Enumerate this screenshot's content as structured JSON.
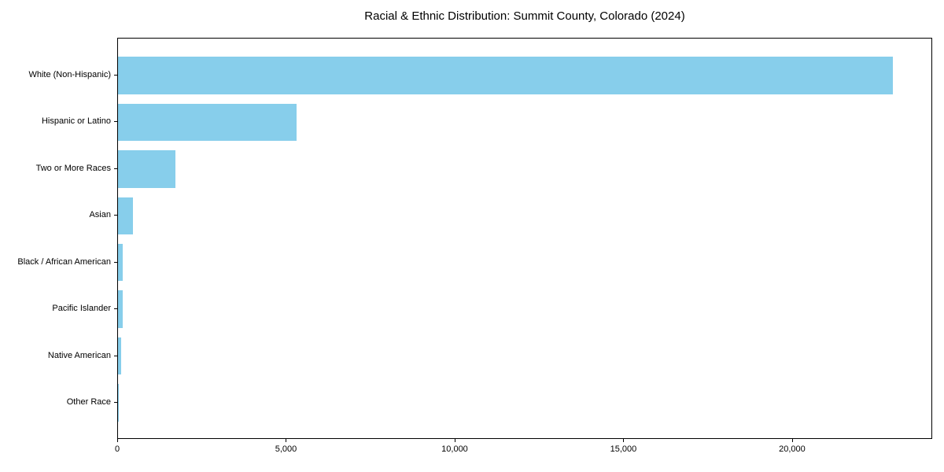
{
  "figure": {
    "background_color": "#ffffff",
    "frame_color": "#000000",
    "text_color": "#000000"
  },
  "chart_data": {
    "type": "bar",
    "orientation": "horizontal",
    "title": "Racial & Ethnic Distribution: Summit County, Colorado (2024)",
    "xlabel": "",
    "ylabel": "",
    "categories": [
      "White (Non-Hispanic)",
      "Hispanic or Latino",
      "Two or More Races",
      "Asian",
      "Black / African American",
      "Pacific Islander",
      "Native American",
      "Other Race"
    ],
    "values": [
      23000,
      5300,
      1700,
      450,
      150,
      130,
      100,
      25
    ],
    "bar_color": "#87CEEB",
    "xlim": [
      0,
      24150
    ],
    "xticks": [
      {
        "value": 0,
        "label": "0"
      },
      {
        "value": 5000,
        "label": "5,000"
      },
      {
        "value": 10000,
        "label": "10,000"
      },
      {
        "value": 15000,
        "label": "15,000"
      },
      {
        "value": 20000,
        "label": "20,000"
      }
    ],
    "grid": false,
    "legend": "none"
  }
}
